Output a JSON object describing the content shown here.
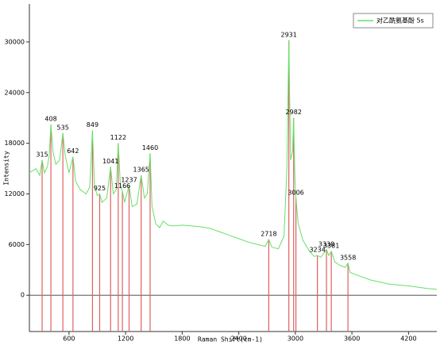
{
  "chart_data": {
    "type": "line",
    "xlabel": "Raman Shift(cm-1)",
    "ylabel": "Intensity",
    "xlim": [
      180,
      4500
    ],
    "ylim": [
      -4300,
      34500
    ],
    "xticks": [
      600,
      1200,
      1800,
      2400,
      3000,
      3600,
      4200
    ],
    "yticks": [
      0,
      6000,
      12000,
      18000,
      24000,
      30000
    ],
    "legend": "top-right",
    "series": [
      {
        "name": "对乙酰氨基酚  5s",
        "color": "#66e066",
        "x": [
          180,
          250,
          290,
          315,
          340,
          370,
          390,
          408,
          430,
          460,
          500,
          535,
          560,
          600,
          642,
          670,
          720,
          780,
          820,
          849,
          870,
          900,
          925,
          950,
          1000,
          1041,
          1070,
          1100,
          1122,
          1145,
          1166,
          1190,
          1237,
          1270,
          1320,
          1365,
          1400,
          1430,
          1460,
          1480,
          1520,
          1560,
          1600,
          1650,
          1700,
          1800,
          1900,
          2000,
          2100,
          2200,
          2300,
          2400,
          2500,
          2600,
          2680,
          2718,
          2750,
          2820,
          2880,
          2910,
          2931,
          2950,
          2970,
          2982,
          2995,
          3006,
          3030,
          3080,
          3150,
          3200,
          3234,
          3270,
          3330,
          3355,
          3381,
          3420,
          3480,
          3530,
          3558,
          3580,
          3650,
          3800,
          4000,
          4200,
          4400,
          4500
        ],
        "values": [
          14500,
          15000,
          14200,
          16000,
          14500,
          15200,
          16500,
          20200,
          17000,
          15500,
          16000,
          19200,
          16500,
          14500,
          16400,
          13500,
          12500,
          12000,
          12800,
          19500,
          13000,
          11800,
          12000,
          11000,
          11500,
          15200,
          12000,
          12500,
          18000,
          13000,
          12300,
          11000,
          13000,
          10500,
          10800,
          14200,
          11500,
          12000,
          16800,
          10500,
          8500,
          8000,
          8800,
          8300,
          8200,
          8300,
          8200,
          8100,
          7900,
          7500,
          7100,
          6700,
          6300,
          6000,
          5800,
          6600,
          5700,
          5500,
          7000,
          15000,
          30200,
          16000,
          17000,
          21000,
          14000,
          11500,
          8500,
          6500,
          5200,
          4600,
          4700,
          4500,
          5400,
          4700,
          5200,
          3900,
          3500,
          3300,
          3800,
          2700,
          2400,
          1800,
          1300,
          1100,
          800,
          700
        ]
      }
    ],
    "peaks": {
      "color": "#e06060",
      "x": [
        315,
        408,
        535,
        642,
        849,
        925,
        1041,
        1122,
        1166,
        1237,
        1365,
        1460,
        2718,
        2931,
        2982,
        3006,
        3234,
        3330,
        3381,
        3558
      ],
      "values": [
        16000,
        20200,
        19200,
        16400,
        19500,
        12000,
        15200,
        18000,
        12300,
        13000,
        14200,
        16800,
        6600,
        30200,
        21000,
        11500,
        4700,
        5400,
        5200,
        3800
      ]
    }
  }
}
